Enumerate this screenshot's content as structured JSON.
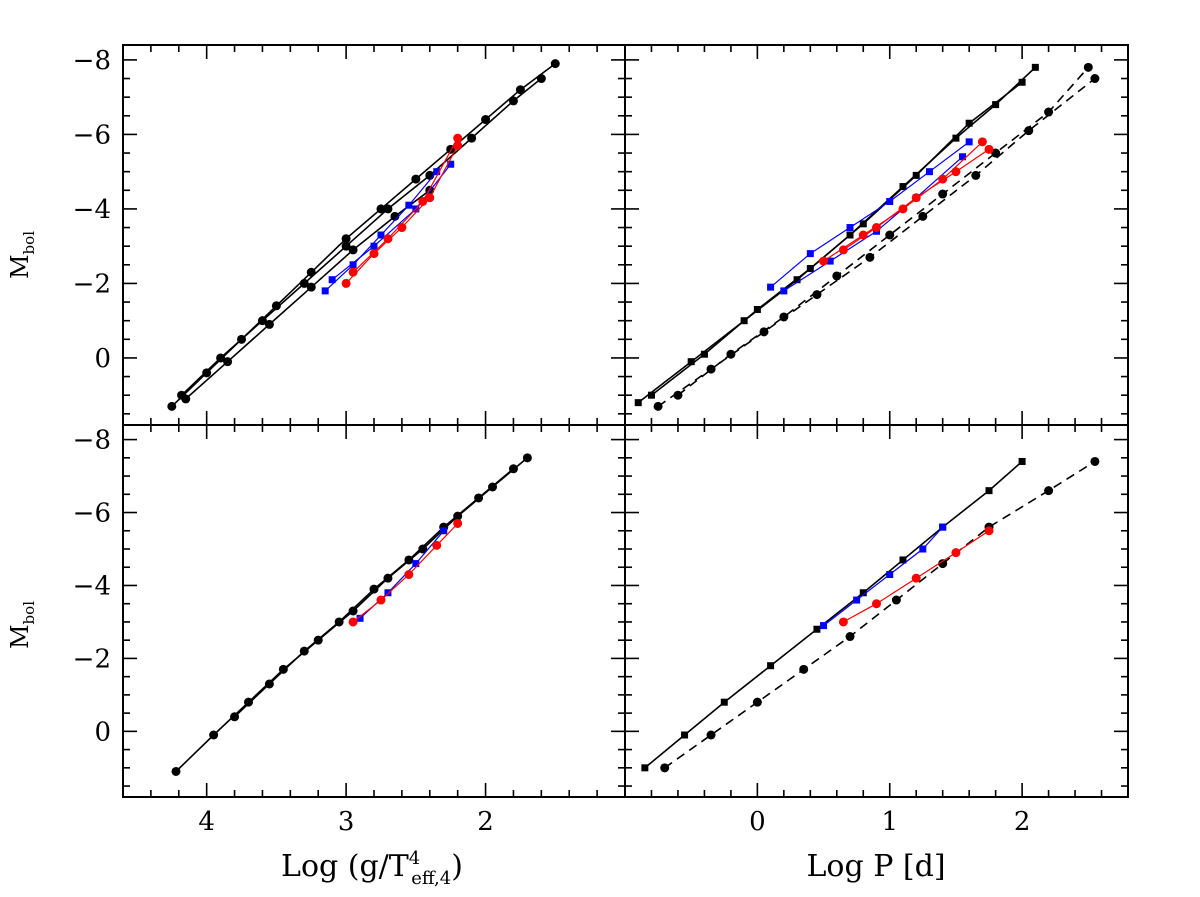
{
  "chart_data": [
    {
      "panel": "top-left",
      "type": "line",
      "xlabel": "Log (g/T⁴eff,4)",
      "ylabel": "Mbol",
      "xlim": [
        4.6,
        1.0
      ],
      "ylim": [
        1.8,
        -8.4
      ],
      "xticks": [
        4,
        3,
        2
      ],
      "yticks": [
        0,
        -2,
        -4,
        -6,
        -8
      ],
      "series": [
        {
          "name": "black-long-1",
          "color": "#000000",
          "marker": "circle",
          "line": "solid",
          "x": [
            4.25,
            4.0,
            3.75,
            3.5,
            3.25,
            3.0,
            2.75,
            2.5,
            2.25,
            2.0,
            1.75,
            1.5
          ],
          "y": [
            1.3,
            0.4,
            -0.5,
            -1.4,
            -2.3,
            -3.2,
            -4.0,
            -4.8,
            -5.6,
            -6.4,
            -7.2,
            -7.9
          ]
        },
        {
          "name": "black-long-2",
          "color": "#000000",
          "marker": "circle",
          "line": "solid",
          "x": [
            4.18,
            3.9,
            3.6,
            3.3,
            3.0,
            2.7,
            2.4,
            2.1,
            1.8,
            1.6
          ],
          "y": [
            1.0,
            0.0,
            -1.0,
            -2.0,
            -3.0,
            -4.0,
            -4.9,
            -5.9,
            -6.9,
            -7.5
          ]
        },
        {
          "name": "black-short-1",
          "color": "#000000",
          "marker": "circle",
          "line": "solid",
          "x": [
            4.15,
            3.85,
            3.55,
            3.25,
            2.95,
            2.65,
            2.4
          ],
          "y": [
            1.1,
            0.1,
            -0.9,
            -1.9,
            -2.9,
            -3.8,
            -4.5
          ]
        },
        {
          "name": "blue-1",
          "color": "#0000ff",
          "marker": "square",
          "line": "solid",
          "x": [
            3.15,
            2.95,
            2.75,
            2.55,
            2.35
          ],
          "y": [
            -1.8,
            -2.5,
            -3.3,
            -4.1,
            -5.0
          ]
        },
        {
          "name": "blue-2",
          "color": "#0000ff",
          "marker": "square",
          "line": "solid",
          "x": [
            3.1,
            2.8,
            2.5,
            2.25
          ],
          "y": [
            -2.1,
            -3.0,
            -4.0,
            -5.2
          ]
        },
        {
          "name": "red-1",
          "color": "#ff0000",
          "marker": "circle",
          "line": "solid",
          "x": [
            3.0,
            2.8,
            2.6,
            2.4,
            2.2
          ],
          "y": [
            -2.0,
            -2.8,
            -3.5,
            -4.3,
            -5.7
          ]
        },
        {
          "name": "red-2",
          "color": "#ff0000",
          "marker": "circle",
          "line": "solid",
          "x": [
            2.95,
            2.7,
            2.45,
            2.2
          ],
          "y": [
            -2.3,
            -3.2,
            -4.2,
            -5.9
          ]
        }
      ]
    },
    {
      "panel": "top-right",
      "type": "line",
      "xlabel": "Log P [d]",
      "ylabel": "",
      "xlim": [
        -1.0,
        2.8
      ],
      "ylim": [
        1.8,
        -8.4
      ],
      "xticks": [
        0,
        1,
        2
      ],
      "yticks": [
        0,
        -2,
        -4,
        -6,
        -8
      ],
      "series": [
        {
          "name": "black-solid-1",
          "color": "#000000",
          "marker": "square",
          "line": "solid",
          "x": [
            -0.9,
            -0.5,
            -0.1,
            0.3,
            0.7,
            1.1,
            1.5,
            1.8,
            2.1
          ],
          "y": [
            1.2,
            0.1,
            -1.0,
            -2.1,
            -3.3,
            -4.6,
            -5.9,
            -6.8,
            -7.8
          ]
        },
        {
          "name": "black-solid-2",
          "color": "#000000",
          "marker": "square",
          "line": "solid",
          "x": [
            -0.8,
            -0.4,
            0.0,
            0.4,
            0.8,
            1.2,
            1.6,
            2.0
          ],
          "y": [
            1.0,
            -0.1,
            -1.3,
            -2.4,
            -3.6,
            -4.9,
            -6.3,
            -7.4
          ]
        },
        {
          "name": "black-dashed-1",
          "color": "#000000",
          "marker": "circle",
          "line": "dashed",
          "x": [
            -0.75,
            -0.35,
            0.05,
            0.45,
            0.85,
            1.25,
            1.65,
            2.05,
            2.55
          ],
          "y": [
            1.3,
            0.3,
            -0.7,
            -1.7,
            -2.7,
            -3.8,
            -4.9,
            -6.1,
            -7.5
          ]
        },
        {
          "name": "black-dashed-2",
          "color": "#000000",
          "marker": "circle",
          "line": "dashed",
          "x": [
            -0.6,
            -0.2,
            0.2,
            0.6,
            1.0,
            1.4,
            1.8,
            2.2,
            2.5
          ],
          "y": [
            1.0,
            -0.1,
            -1.1,
            -2.2,
            -3.3,
            -4.4,
            -5.5,
            -6.6,
            -7.8
          ]
        },
        {
          "name": "blue-1",
          "color": "#0000ff",
          "marker": "square",
          "line": "solid",
          "x": [
            0.1,
            0.4,
            0.7,
            1.0,
            1.3,
            1.6
          ],
          "y": [
            -1.9,
            -2.8,
            -3.5,
            -4.2,
            -5.0,
            -5.8
          ]
        },
        {
          "name": "blue-2",
          "color": "#0000ff",
          "marker": "square",
          "line": "solid",
          "x": [
            0.2,
            0.55,
            0.9,
            1.2,
            1.55
          ],
          "y": [
            -1.8,
            -2.6,
            -3.4,
            -4.3,
            -5.4
          ]
        },
        {
          "name": "red-1",
          "color": "#ff0000",
          "marker": "circle",
          "line": "solid",
          "x": [
            0.5,
            0.8,
            1.1,
            1.4,
            1.7
          ],
          "y": [
            -2.6,
            -3.3,
            -4.0,
            -4.8,
            -5.8
          ]
        },
        {
          "name": "red-2",
          "color": "#ff0000",
          "marker": "circle",
          "line": "solid",
          "x": [
            0.65,
            0.9,
            1.2,
            1.5,
            1.75
          ],
          "y": [
            -2.9,
            -3.5,
            -4.3,
            -5.0,
            -5.6
          ]
        }
      ]
    },
    {
      "panel": "bottom-left",
      "type": "line",
      "xlabel": "Log (g/T⁴eff,4)",
      "ylabel": "Mbol",
      "xlim": [
        4.6,
        1.0
      ],
      "ylim": [
        1.8,
        -8.4
      ],
      "xticks": [
        4,
        3,
        2
      ],
      "yticks": [
        0,
        -2,
        -4,
        -6,
        -8
      ],
      "series": [
        {
          "name": "black-1",
          "color": "#000000",
          "marker": "circle",
          "line": "solid",
          "x": [
            4.22,
            3.95,
            3.7,
            3.45,
            3.2,
            2.95,
            2.7,
            2.45,
            2.2,
            1.95,
            1.7
          ],
          "y": [
            1.1,
            0.1,
            -0.8,
            -1.7,
            -2.5,
            -3.3,
            -4.2,
            -5.0,
            -5.9,
            -6.7,
            -7.5
          ]
        },
        {
          "name": "black-2",
          "color": "#000000",
          "marker": "circle",
          "line": "solid",
          "x": [
            3.8,
            3.55,
            3.3,
            3.05,
            2.8,
            2.55,
            2.3,
            2.05,
            1.8
          ],
          "y": [
            -0.4,
            -1.3,
            -2.2,
            -3.0,
            -3.9,
            -4.7,
            -5.6,
            -6.4,
            -7.2
          ]
        },
        {
          "name": "blue-1",
          "color": "#0000ff",
          "marker": "square",
          "line": "solid",
          "x": [
            2.9,
            2.7,
            2.5,
            2.3
          ],
          "y": [
            -3.1,
            -3.8,
            -4.6,
            -5.5
          ]
        },
        {
          "name": "red-1",
          "color": "#ff0000",
          "marker": "circle",
          "line": "solid",
          "x": [
            2.95,
            2.75,
            2.55,
            2.35,
            2.2
          ],
          "y": [
            -3.0,
            -3.6,
            -4.3,
            -5.1,
            -5.7
          ]
        }
      ]
    },
    {
      "panel": "bottom-right",
      "type": "line",
      "xlabel": "Log P [d]",
      "ylabel": "",
      "xlim": [
        -1.0,
        2.8
      ],
      "ylim": [
        1.8,
        -8.4
      ],
      "xticks": [
        0,
        1,
        2
      ],
      "yticks": [
        0,
        -2,
        -4,
        -6,
        -8
      ],
      "series": [
        {
          "name": "black-solid",
          "color": "#000000",
          "marker": "square",
          "line": "solid",
          "x": [
            -0.85,
            -0.55,
            -0.25,
            0.1,
            0.45,
            0.8,
            1.1,
            1.4,
            1.75,
            2.0
          ],
          "y": [
            1.0,
            0.1,
            -0.8,
            -1.8,
            -2.8,
            -3.8,
            -4.7,
            -5.6,
            -6.6,
            -7.4
          ]
        },
        {
          "name": "black-dashed",
          "color": "#000000",
          "marker": "circle",
          "line": "dashed",
          "x": [
            -0.7,
            -0.35,
            0.0,
            0.35,
            0.7,
            1.05,
            1.4,
            1.75,
            2.2,
            2.55
          ],
          "y": [
            1.0,
            0.1,
            -0.8,
            -1.7,
            -2.6,
            -3.6,
            -4.6,
            -5.6,
            -6.6,
            -7.4
          ]
        },
        {
          "name": "blue",
          "color": "#0000ff",
          "marker": "square",
          "line": "solid",
          "x": [
            0.5,
            0.75,
            1.0,
            1.25,
            1.4
          ],
          "y": [
            -2.9,
            -3.6,
            -4.3,
            -5.0,
            -5.6
          ]
        },
        {
          "name": "red",
          "color": "#ff0000",
          "marker": "circle",
          "line": "solid",
          "x": [
            0.65,
            0.9,
            1.2,
            1.5,
            1.75
          ],
          "y": [
            -3.0,
            -3.5,
            -4.2,
            -4.9,
            -5.5
          ]
        }
      ]
    }
  ]
}
